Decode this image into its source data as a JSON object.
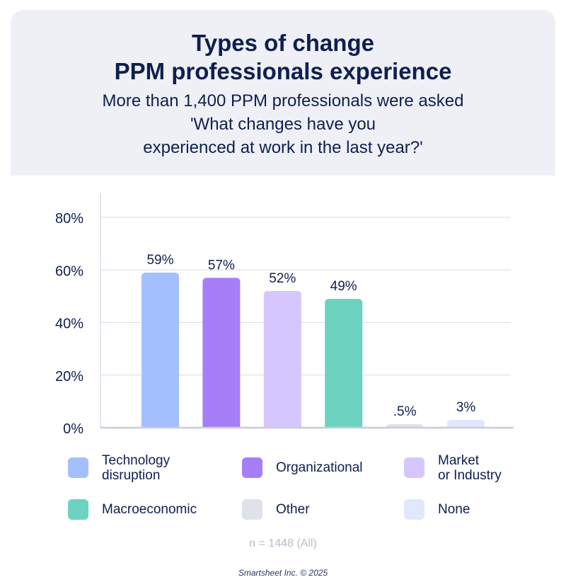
{
  "header": {
    "title_line1": "Types of change",
    "title_line2": "PPM professionals experience",
    "subtitle_line1": "More than 1,400 PPM professionals were asked",
    "subtitle_line2": "'What changes have you",
    "subtitle_line3": "experienced at work in the last year?'"
  },
  "chart_data": {
    "type": "bar",
    "categories": [
      "Technology disruption",
      "Organizational",
      "Market or Industry",
      "Macroeconomic",
      "Other",
      "None"
    ],
    "values": [
      59,
      57,
      52,
      49,
      0.5,
      3
    ],
    "value_labels": [
      "59%",
      "57%",
      "52%",
      "49%",
      ".5%",
      "3%"
    ],
    "colors": [
      "#a4bffe",
      "#a67ef8",
      "#d6c6fe",
      "#6bd3bf",
      "#dfe2eb",
      "#dfe8fd"
    ],
    "ylim": [
      0,
      80
    ],
    "yticks": [
      0,
      20,
      40,
      60,
      80
    ],
    "ytick_labels": [
      "0%",
      "20%",
      "40%",
      "60%",
      "80%"
    ],
    "grid": true,
    "legend_position": "bottom"
  },
  "legend": [
    {
      "label": "Technology\ndisruption",
      "color": "#a4bffe"
    },
    {
      "label": "Organizational",
      "color": "#a67ef8"
    },
    {
      "label": "Market\nor Industry",
      "color": "#d6c6fe"
    },
    {
      "label": "Macroeconomic",
      "color": "#6bd3bf"
    },
    {
      "label": "Other",
      "color": "#dfe2eb"
    },
    {
      "label": "None",
      "color": "#dfe8fd"
    }
  ],
  "footnote": "n = 1448 (All)",
  "credit": "Smartsheet Inc. © 2025"
}
